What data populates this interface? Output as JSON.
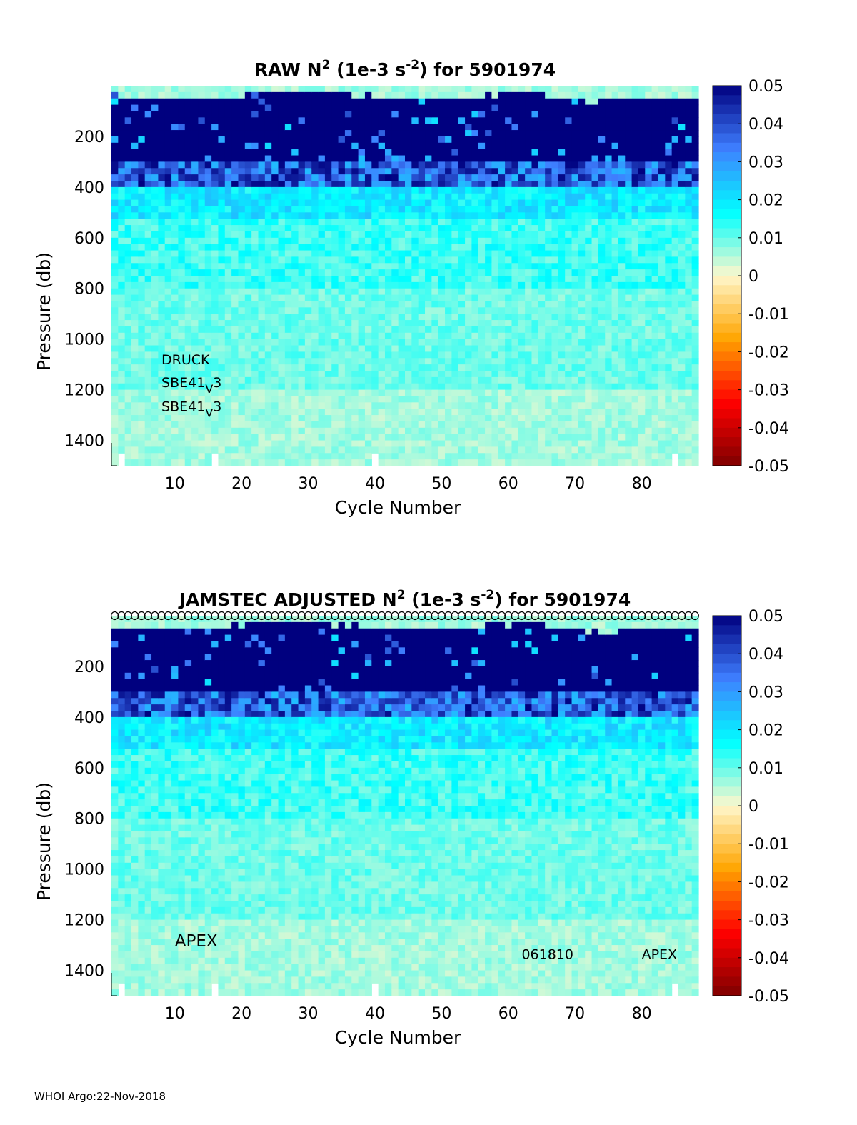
{
  "chart_data": [
    {
      "type": "heatmap",
      "title_main": "RAW N",
      "title_sup": "2",
      "title_mid": " (1e-3 s",
      "title_sup2": "-2",
      "title_end": ") for 5901974",
      "xlabel": "Cycle Number",
      "ylabel": "Pressure (db)",
      "xlim": [
        1,
        88
      ],
      "ylim": [
        0,
        1500
      ],
      "y_reversed": true,
      "xticks": [
        10,
        20,
        30,
        40,
        50,
        60,
        70,
        80
      ],
      "yticks": [
        200,
        400,
        600,
        800,
        1000,
        1200,
        1400
      ],
      "colorbar": {
        "range": [
          -0.05,
          0.05
        ],
        "ticks": [
          "0.05",
          "0.04",
          "0.03",
          "0.02",
          "0.01",
          "0",
          "-0.01",
          "-0.02",
          "-0.03",
          "-0.04",
          "-0.05"
        ],
        "colormap": [
          "#7f0000",
          "#ff0000",
          "#ffa500",
          "#fff7cc",
          "#00ffff",
          "#3f7fff",
          "#00007f"
        ]
      },
      "annotations": [
        {
          "text": "DRUCK",
          "x": 8,
          "y": 1100
        },
        {
          "text": "SBE41",
          "sub": "V",
          "tail": "3",
          "x": 8,
          "y": 1190
        },
        {
          "text": "SBE41",
          "sub": "V",
          "tail": "3",
          "x": 8,
          "y": 1285
        }
      ],
      "profile_markers": false
    },
    {
      "type": "heatmap",
      "title_main": "JAMSTEC  ADJUSTED N",
      "title_sup": "2",
      "title_mid": " (1e-3 s",
      "title_sup2": "-2",
      "title_end": ") for 5901974",
      "xlabel": "Cycle Number",
      "ylabel": "Pressure (db)",
      "xlim": [
        1,
        88
      ],
      "ylim": [
        0,
        1500
      ],
      "y_reversed": true,
      "xticks": [
        10,
        20,
        30,
        40,
        50,
        60,
        70,
        80
      ],
      "yticks": [
        200,
        400,
        600,
        800,
        1000,
        1200,
        1400
      ],
      "colorbar": {
        "range": [
          -0.05,
          0.05
        ],
        "ticks": [
          "0.05",
          "0.04",
          "0.03",
          "0.02",
          "0.01",
          "0",
          "-0.01",
          "-0.02",
          "-0.03",
          "-0.04",
          "-0.05"
        ],
        "colormap": [
          "#7f0000",
          "#ff0000",
          "#ffa500",
          "#fff7cc",
          "#00ffff",
          "#3f7fff",
          "#00007f"
        ]
      },
      "annotations": [
        {
          "text": "APEX",
          "x": 10,
          "y": 1305,
          "big": true
        },
        {
          "text": "061810",
          "x": 62,
          "y": 1355
        },
        {
          "text": "APEX",
          "x": 80,
          "y": 1355
        }
      ],
      "profile_markers": true
    }
  ],
  "footer": "WHOI Argo:22-Nov-2018"
}
